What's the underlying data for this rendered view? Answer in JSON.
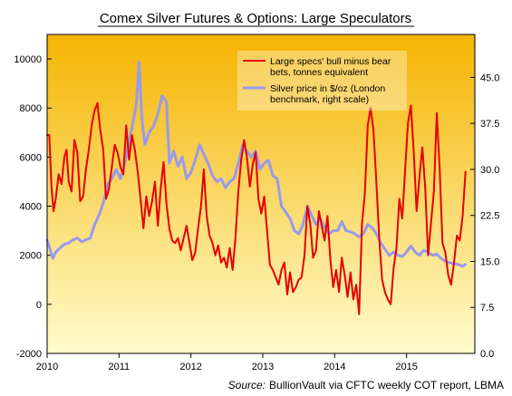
{
  "chart_data": {
    "type": "line",
    "title": "Comex Silver Futures & Options: Large Speculators",
    "source_label": "Source:",
    "source_text": "BullionVault via CFTC weekly COT report, LBMA",
    "x_ticks": [
      "2010",
      "2011",
      "2012",
      "2013",
      "2014",
      "2015"
    ],
    "x_range": [
      2010.0,
      2015.95
    ],
    "y_left_range": [
      -2000,
      11000
    ],
    "y_left_ticks": [
      "-2000",
      "0",
      "2000",
      "4000",
      "6000",
      "8000",
      "10000"
    ],
    "y_right_range": [
      0,
      52
    ],
    "y_right_ticks": [
      "0.0",
      "7.5",
      "15.0",
      "22.5",
      "30.0",
      "37.5",
      "45.0"
    ],
    "grid": false,
    "legend_position": "top-right",
    "colors": {
      "specs": "#e60000",
      "silver": "#9999ee",
      "bg_top": "#f5b400",
      "bg_bottom": "#fffccc"
    },
    "series": [
      {
        "name": "Large specs' bull minus bear bets, tonnes equivalent",
        "legend_lines": [
          "Large specs' bull minus bear",
          "bets, tonnes equivalent"
        ],
        "axis": "left",
        "points": [
          [
            2010.0,
            6900
          ],
          [
            2010.03,
            6900
          ],
          [
            2010.06,
            4800
          ],
          [
            2010.09,
            3800
          ],
          [
            2010.12,
            4300
          ],
          [
            2010.16,
            5300
          ],
          [
            2010.2,
            4900
          ],
          [
            2010.24,
            6000
          ],
          [
            2010.27,
            6300
          ],
          [
            2010.3,
            5000
          ],
          [
            2010.34,
            4600
          ],
          [
            2010.38,
            6700
          ],
          [
            2010.42,
            6200
          ],
          [
            2010.46,
            4200
          ],
          [
            2010.5,
            4400
          ],
          [
            2010.54,
            5500
          ],
          [
            2010.58,
            6300
          ],
          [
            2010.62,
            7300
          ],
          [
            2010.66,
            7900
          ],
          [
            2010.7,
            8200
          ],
          [
            2010.74,
            7100
          ],
          [
            2010.78,
            6300
          ],
          [
            2010.82,
            4300
          ],
          [
            2010.86,
            4700
          ],
          [
            2010.9,
            5600
          ],
          [
            2010.94,
            6500
          ],
          [
            2010.98,
            6200
          ],
          [
            2011.02,
            5600
          ],
          [
            2011.06,
            5300
          ],
          [
            2011.1,
            7300
          ],
          [
            2011.14,
            5900
          ],
          [
            2011.18,
            6900
          ],
          [
            2011.22,
            6300
          ],
          [
            2011.26,
            5400
          ],
          [
            2011.3,
            4300
          ],
          [
            2011.34,
            3100
          ],
          [
            2011.38,
            4400
          ],
          [
            2011.42,
            3600
          ],
          [
            2011.46,
            4200
          ],
          [
            2011.5,
            5000
          ],
          [
            2011.54,
            3200
          ],
          [
            2011.58,
            4700
          ],
          [
            2011.62,
            5800
          ],
          [
            2011.66,
            4100
          ],
          [
            2011.7,
            3100
          ],
          [
            2011.74,
            2600
          ],
          [
            2011.78,
            2500
          ],
          [
            2011.82,
            2700
          ],
          [
            2011.86,
            2200
          ],
          [
            2011.9,
            2700
          ],
          [
            2011.94,
            3200
          ],
          [
            2011.98,
            2500
          ],
          [
            2012.02,
            1800
          ],
          [
            2012.06,
            2100
          ],
          [
            2012.1,
            3100
          ],
          [
            2012.14,
            4000
          ],
          [
            2012.18,
            5500
          ],
          [
            2012.22,
            3600
          ],
          [
            2012.26,
            2800
          ],
          [
            2012.3,
            2500
          ],
          [
            2012.34,
            2000
          ],
          [
            2012.38,
            2400
          ],
          [
            2012.42,
            1700
          ],
          [
            2012.46,
            1900
          ],
          [
            2012.5,
            1500
          ],
          [
            2012.54,
            2300
          ],
          [
            2012.58,
            1400
          ],
          [
            2012.62,
            2700
          ],
          [
            2012.66,
            4600
          ],
          [
            2012.7,
            5900
          ],
          [
            2012.74,
            6700
          ],
          [
            2012.78,
            6000
          ],
          [
            2012.82,
            4800
          ],
          [
            2012.86,
            5700
          ],
          [
            2012.9,
            6200
          ],
          [
            2012.94,
            4300
          ],
          [
            2012.98,
            3700
          ],
          [
            2013.02,
            4400
          ],
          [
            2013.06,
            3000
          ],
          [
            2013.1,
            1600
          ],
          [
            2013.14,
            1400
          ],
          [
            2013.18,
            1100
          ],
          [
            2013.22,
            800
          ],
          [
            2013.26,
            1400
          ],
          [
            2013.3,
            1700
          ],
          [
            2013.34,
            400
          ],
          [
            2013.38,
            1300
          ],
          [
            2013.42,
            500
          ],
          [
            2013.46,
            700
          ],
          [
            2013.5,
            1000
          ],
          [
            2013.54,
            1100
          ],
          [
            2013.58,
            2000
          ],
          [
            2013.62,
            4000
          ],
          [
            2013.66,
            3300
          ],
          [
            2013.7,
            1900
          ],
          [
            2013.74,
            2200
          ],
          [
            2013.78,
            3800
          ],
          [
            2013.82,
            3200
          ],
          [
            2013.86,
            2600
          ],
          [
            2013.9,
            3600
          ],
          [
            2013.94,
            1800
          ],
          [
            2013.98,
            700
          ],
          [
            2014.02,
            1400
          ],
          [
            2014.06,
            500
          ],
          [
            2014.1,
            1900
          ],
          [
            2014.14,
            1200
          ],
          [
            2014.18,
            300
          ],
          [
            2014.22,
            1300
          ],
          [
            2014.26,
            200
          ],
          [
            2014.3,
            800
          ],
          [
            2014.34,
            -400
          ],
          [
            2014.38,
            3300
          ],
          [
            2014.42,
            4500
          ],
          [
            2014.46,
            7300
          ],
          [
            2014.5,
            8000
          ],
          [
            2014.54,
            7100
          ],
          [
            2014.58,
            5000
          ],
          [
            2014.62,
            2700
          ],
          [
            2014.66,
            1000
          ],
          [
            2014.7,
            500
          ],
          [
            2014.74,
            200
          ],
          [
            2014.78,
            0
          ],
          [
            2014.82,
            1500
          ],
          [
            2014.86,
            2300
          ],
          [
            2014.9,
            4300
          ],
          [
            2014.94,
            3500
          ],
          [
            2014.98,
            5500
          ],
          [
            2015.02,
            7400
          ],
          [
            2015.06,
            8100
          ],
          [
            2015.1,
            6200
          ],
          [
            2015.14,
            3800
          ],
          [
            2015.18,
            5200
          ],
          [
            2015.22,
            6400
          ],
          [
            2015.26,
            4700
          ],
          [
            2015.3,
            2000
          ],
          [
            2015.34,
            3300
          ],
          [
            2015.38,
            4600
          ],
          [
            2015.42,
            7800
          ],
          [
            2015.46,
            5600
          ],
          [
            2015.5,
            2500
          ],
          [
            2015.54,
            2100
          ],
          [
            2015.58,
            1200
          ],
          [
            2015.62,
            800
          ],
          [
            2015.66,
            1700
          ],
          [
            2015.7,
            2800
          ],
          [
            2015.74,
            2600
          ],
          [
            2015.78,
            3600
          ],
          [
            2015.82,
            5400
          ]
        ]
      },
      {
        "name": "Silver price in $/oz (London benchmark, right scale)",
        "legend_lines": [
          "Silver price in $/oz (London",
          "benchmark, right scale)"
        ],
        "axis": "right",
        "points": [
          [
            2010.0,
            18.5
          ],
          [
            2010.04,
            17.0
          ],
          [
            2010.08,
            15.5
          ],
          [
            2010.12,
            16.5
          ],
          [
            2010.18,
            17.2
          ],
          [
            2010.24,
            17.8
          ],
          [
            2010.3,
            18.0
          ],
          [
            2010.36,
            18.5
          ],
          [
            2010.42,
            18.8
          ],
          [
            2010.48,
            18.2
          ],
          [
            2010.54,
            18.5
          ],
          [
            2010.6,
            18.8
          ],
          [
            2010.66,
            21.0
          ],
          [
            2010.72,
            22.5
          ],
          [
            2010.78,
            24.5
          ],
          [
            2010.84,
            27.5
          ],
          [
            2010.9,
            28.5
          ],
          [
            2010.96,
            30.0
          ],
          [
            2011.02,
            28.5
          ],
          [
            2011.08,
            31.0
          ],
          [
            2011.14,
            34.5
          ],
          [
            2011.2,
            38.0
          ],
          [
            2011.24,
            40.5
          ],
          [
            2011.28,
            47.5
          ],
          [
            2011.32,
            38.0
          ],
          [
            2011.36,
            34.0
          ],
          [
            2011.42,
            36.0
          ],
          [
            2011.48,
            37.0
          ],
          [
            2011.54,
            39.0
          ],
          [
            2011.6,
            42.0
          ],
          [
            2011.66,
            41.0
          ],
          [
            2011.7,
            31.0
          ],
          [
            2011.76,
            33.0
          ],
          [
            2011.82,
            30.5
          ],
          [
            2011.88,
            32.0
          ],
          [
            2011.94,
            28.5
          ],
          [
            2012.0,
            29.5
          ],
          [
            2012.06,
            31.5
          ],
          [
            2012.12,
            34.0
          ],
          [
            2012.18,
            32.5
          ],
          [
            2012.24,
            31.0
          ],
          [
            2012.3,
            29.0
          ],
          [
            2012.36,
            28.0
          ],
          [
            2012.42,
            28.5
          ],
          [
            2012.48,
            27.0
          ],
          [
            2012.54,
            28.0
          ],
          [
            2012.6,
            28.5
          ],
          [
            2012.66,
            31.0
          ],
          [
            2012.72,
            34.0
          ],
          [
            2012.78,
            33.0
          ],
          [
            2012.84,
            32.0
          ],
          [
            2012.9,
            33.0
          ],
          [
            2012.96,
            30.0
          ],
          [
            2013.02,
            31.0
          ],
          [
            2013.08,
            31.5
          ],
          [
            2013.14,
            29.0
          ],
          [
            2013.2,
            28.5
          ],
          [
            2013.26,
            24.0
          ],
          [
            2013.32,
            23.0
          ],
          [
            2013.38,
            22.0
          ],
          [
            2013.44,
            20.0
          ],
          [
            2013.5,
            19.5
          ],
          [
            2013.56,
            21.0
          ],
          [
            2013.62,
            24.0
          ],
          [
            2013.68,
            22.5
          ],
          [
            2013.74,
            21.0
          ],
          [
            2013.8,
            22.0
          ],
          [
            2013.86,
            20.5
          ],
          [
            2013.92,
            19.5
          ],
          [
            2013.98,
            20.0
          ],
          [
            2014.04,
            20.0
          ],
          [
            2014.1,
            21.5
          ],
          [
            2014.16,
            20.0
          ],
          [
            2014.22,
            19.8
          ],
          [
            2014.28,
            19.5
          ],
          [
            2014.34,
            19.0
          ],
          [
            2014.4,
            19.5
          ],
          [
            2014.46,
            21.0
          ],
          [
            2014.52,
            20.5
          ],
          [
            2014.58,
            19.5
          ],
          [
            2014.64,
            18.0
          ],
          [
            2014.7,
            17.0
          ],
          [
            2014.76,
            16.0
          ],
          [
            2014.82,
            16.5
          ],
          [
            2014.88,
            16.0
          ],
          [
            2014.94,
            15.8
          ],
          [
            2015.0,
            16.5
          ],
          [
            2015.06,
            17.5
          ],
          [
            2015.12,
            16.5
          ],
          [
            2015.18,
            16.0
          ],
          [
            2015.24,
            16.8
          ],
          [
            2015.3,
            16.5
          ],
          [
            2015.36,
            16.0
          ],
          [
            2015.42,
            16.2
          ],
          [
            2015.48,
            15.5
          ],
          [
            2015.54,
            15.0
          ],
          [
            2015.6,
            14.8
          ],
          [
            2015.66,
            14.6
          ],
          [
            2015.72,
            14.5
          ],
          [
            2015.78,
            14.2
          ],
          [
            2015.82,
            14.5
          ]
        ]
      }
    ]
  }
}
